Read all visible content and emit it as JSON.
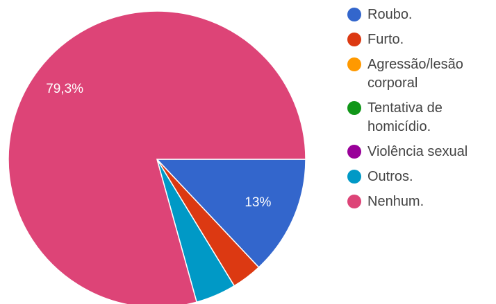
{
  "chart_data": {
    "type": "pie",
    "categories": [
      "Roubo.",
      "Furto.",
      "Agressão/lesão corporal",
      "Tentativa de homicídio.",
      "Violência sexual",
      "Outros.",
      "Nenhum."
    ],
    "values": [
      13.0,
      3.3,
      0,
      0,
      0,
      4.4,
      79.3
    ],
    "colors": [
      "#3366cc",
      "#dc3912",
      "#ff9900",
      "#109618",
      "#990099",
      "#0099c6",
      "#dd4477"
    ],
    "data_labels": [
      "13%",
      "",
      "",
      "",
      "",
      "",
      "79,3%"
    ],
    "legend_position": "right"
  }
}
